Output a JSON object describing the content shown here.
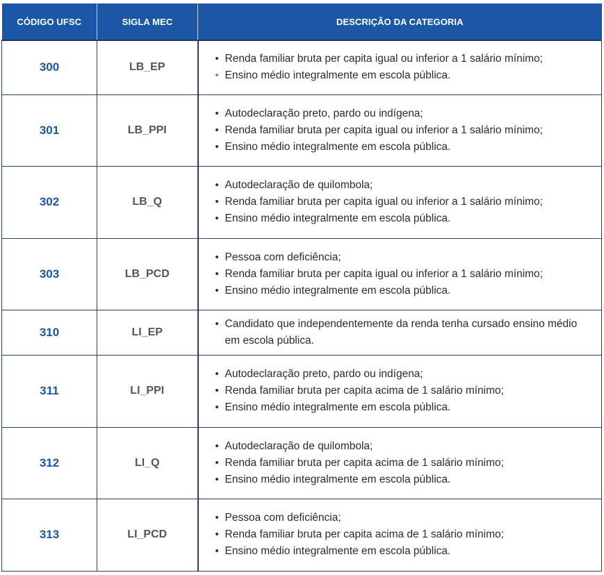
{
  "header": {
    "col_code": "CÓDIGO UFSC",
    "col_sigla": "SIGLA MEC",
    "col_desc": "DESCRIÇÃO DA CATEGORIA"
  },
  "bullet_char": "•",
  "rows": [
    {
      "code": "300",
      "sigla": "LB_EP",
      "items": [
        "Renda familiar bruta per capita igual ou inferior a 1 salário mínimo;",
        "Ensino médio integralmente em escola pública."
      ]
    },
    {
      "code": "301",
      "sigla": "LB_PPI",
      "items": [
        "Autodeclaração preto, pardo ou indígena;",
        "Renda familiar bruta per capita igual ou inferior a 1 salário mínimo;",
        "Ensino médio integralmente em escola pública."
      ]
    },
    {
      "code": "302",
      "sigla": "LB_Q",
      "items": [
        "Autodeclaração de quilombola;",
        "Renda familiar bruta per capita igual ou inferior a 1 salário mínimo;",
        "Ensino médio integralmente em escola pública."
      ]
    },
    {
      "code": "303",
      "sigla": "LB_PCD",
      "items": [
        "Pessoa com deficiência;",
        "Renda familiar bruta per capita igual ou inferior a 1 salário mínimo;",
        "Ensino médio integralmente em escola pública."
      ]
    },
    {
      "code": "310",
      "sigla": "LI_EP",
      "items": [
        "Candidato que independentemente da renda tenha cursado ensino médio em escola pública."
      ]
    },
    {
      "code": "311",
      "sigla": "LI_PPI",
      "items": [
        "Autodeclaração preto, pardo ou indígena;",
        "Renda familiar bruta per capita acima de 1 salário mínimo;",
        "Ensino médio integralmente em escola pública."
      ]
    },
    {
      "code": "312",
      "sigla": "LI_Q",
      "items": [
        "Autodeclaração de quilombola;",
        "Renda familiar bruta per capita acima de 1 salário mínimo;",
        "Ensino médio integralmente em escola pública."
      ]
    },
    {
      "code": "313",
      "sigla": "LI_PCD",
      "items": [
        "Pessoa com deficiência;",
        "Renda familiar bruta per capita acima de 1 salário mínimo;",
        "Ensino médio integralmente em escola pública."
      ]
    }
  ],
  "colors": {
    "header_bg": "#1b57a5",
    "code_text": "#1b57a5",
    "sigla_text": "#555555",
    "border": "#2a3f66"
  }
}
